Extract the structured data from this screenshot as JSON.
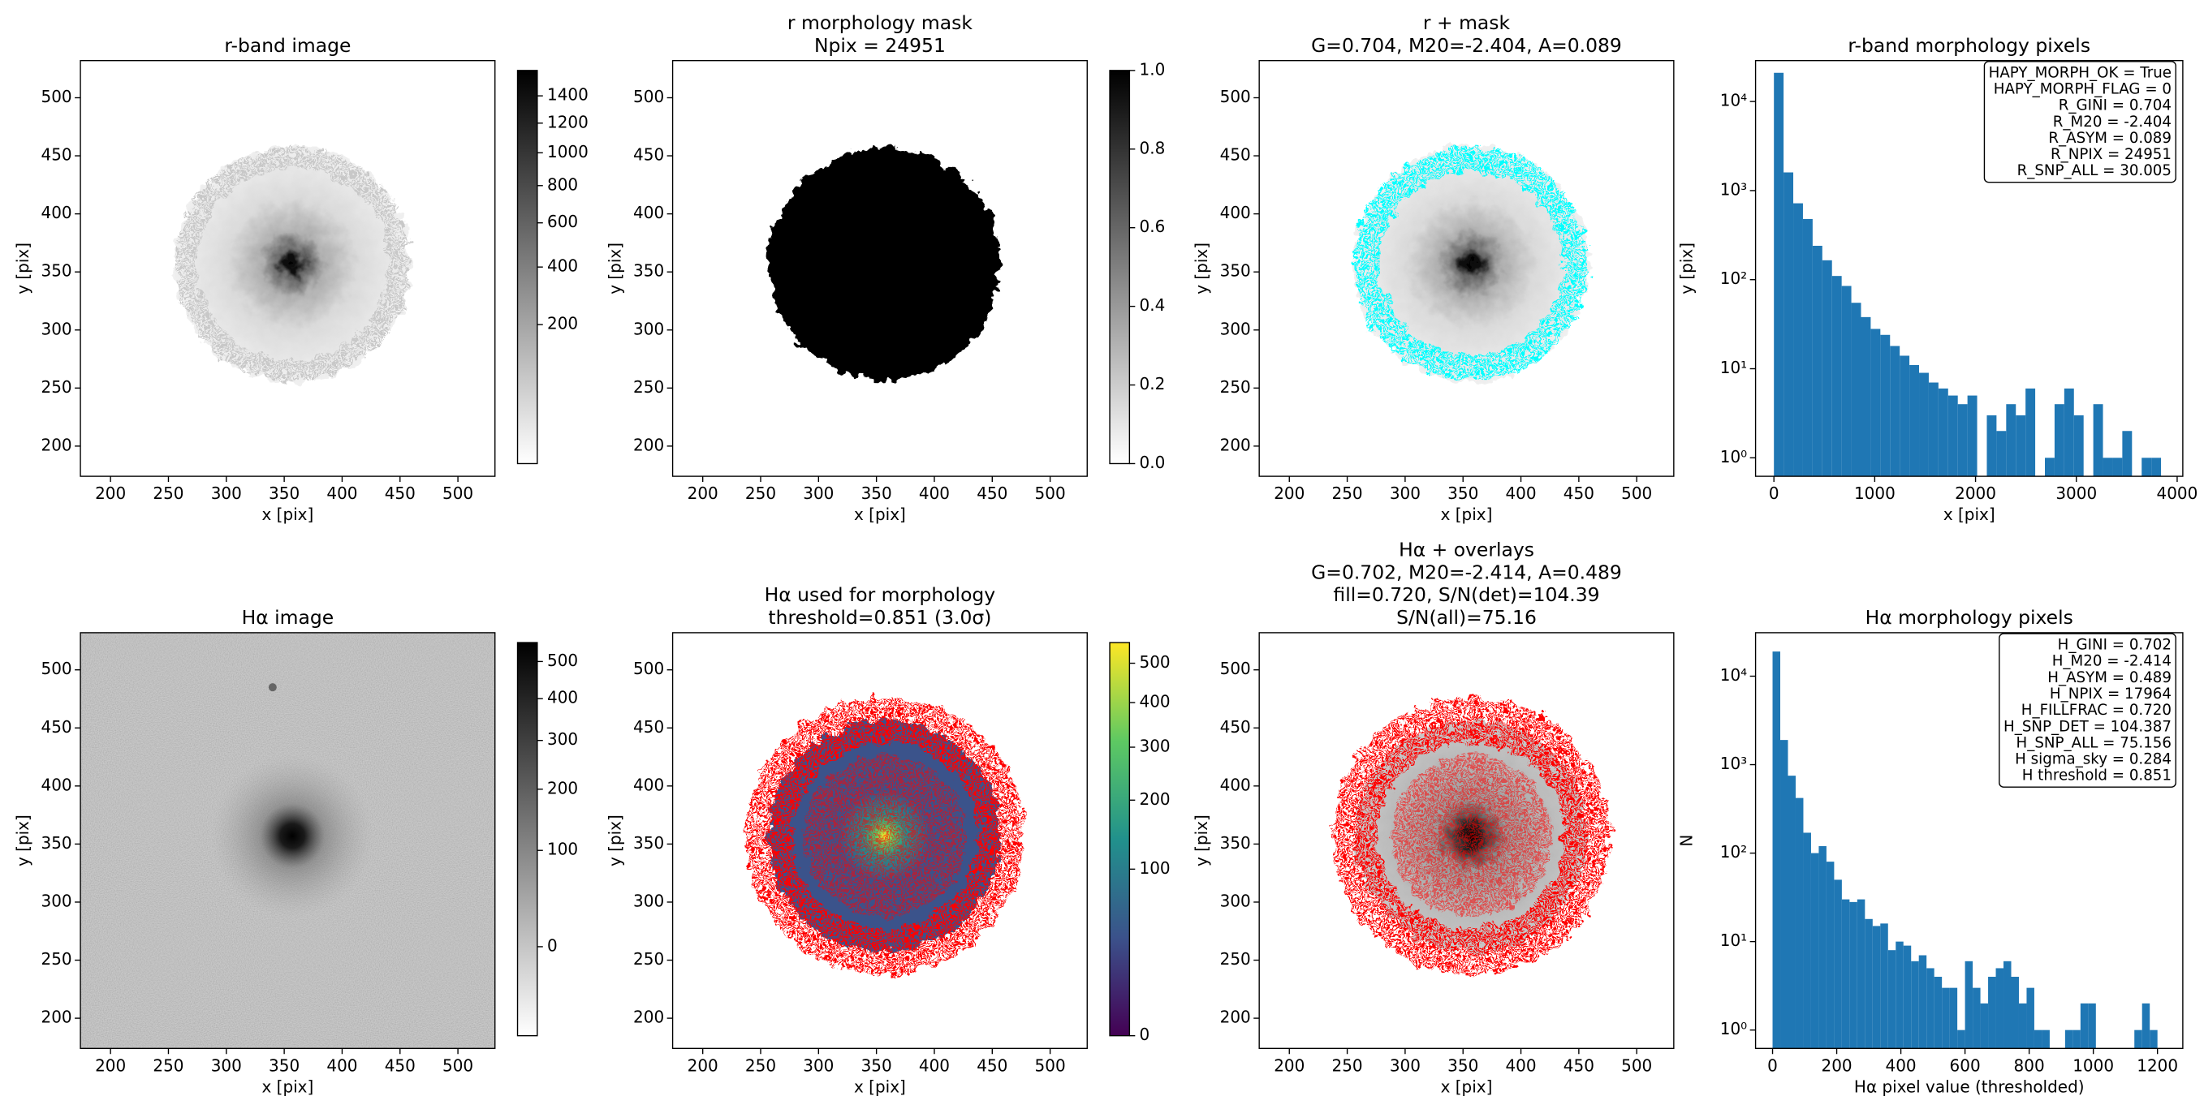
{
  "chart_data": [
    {
      "type": "image",
      "title": [
        "r-band image"
      ],
      "xlabel": "x [pix]",
      "ylabel": "y [pix]",
      "xlim": [
        174,
        532
      ],
      "ylim": [
        174,
        532
      ],
      "xticks": [
        200,
        250,
        300,
        350,
        400,
        450,
        500
      ],
      "yticks": [
        200,
        250,
        300,
        350,
        400,
        450,
        500
      ],
      "cmap": "gray_r",
      "colorbar": {
        "lim": [
          0,
          1600
        ],
        "scale": "sqrt",
        "ticks": [
          200,
          400,
          600,
          800,
          1000,
          1200,
          1400
        ]
      }
    },
    {
      "type": "image",
      "title": [
        "r morphology mask",
        "Npix = 24951"
      ],
      "xlabel": "x [pix]",
      "ylabel": "y [pix]",
      "xlim": [
        174,
        532
      ],
      "ylim": [
        174,
        532
      ],
      "xticks": [
        200,
        250,
        300,
        350,
        400,
        450,
        500
      ],
      "yticks": [
        200,
        250,
        300,
        350,
        400,
        450,
        500
      ],
      "cmap": "gray_r",
      "colorbar": {
        "lim": [
          0,
          1
        ],
        "scale": "linear",
        "ticks": [
          {
            "value": 0,
            "label": "0.0"
          },
          0.2,
          0.4,
          0.6,
          0.8,
          {
            "value": 1,
            "label": "1.0"
          }
        ]
      }
    },
    {
      "type": "image",
      "title": [
        "r + mask",
        "G=0.704, M20=-2.404, A=0.089"
      ],
      "xlabel": "x [pix]",
      "ylabel": "y [pix]",
      "xlim": [
        174,
        532
      ],
      "ylim": [
        174,
        532
      ],
      "xticks": [
        200,
        250,
        300,
        350,
        400,
        450,
        500
      ],
      "yticks": [
        200,
        250,
        300,
        350,
        400,
        450,
        500
      ],
      "cmap": "gray_r",
      "overlay_colors": [
        "#00ffff"
      ]
    },
    {
      "type": "histogram",
      "title": [
        "r-band morphology pixels"
      ],
      "xlabel": "x [pix]",
      "ylabel": "y [pix]",
      "color": "#1f77b4",
      "log_y": true,
      "bins": [
        0,
        96,
        192,
        288,
        384,
        480,
        576,
        672,
        768,
        864,
        960,
        1056,
        1152,
        1248,
        1344,
        1440,
        1536,
        1632,
        1728,
        1824,
        1920,
        2016,
        2112,
        2208,
        2304,
        2400,
        2496,
        2592,
        2688,
        2784,
        2880,
        2976,
        3072,
        3168,
        3264,
        3360,
        3456,
        3552,
        3648,
        3744,
        3840
      ],
      "counts": [
        21000,
        1600,
        720,
        480,
        240,
        165,
        110,
        85,
        55,
        38,
        28,
        24,
        18,
        14,
        11,
        9,
        7,
        6,
        5,
        4,
        5,
        0,
        3,
        2,
        4,
        3,
        6,
        0,
        1,
        4,
        6,
        3,
        0,
        4,
        1,
        1,
        2,
        0,
        1,
        1
      ],
      "xlim": [
        -182,
        4056
      ],
      "ylim": [
        0.62,
        28800
      ],
      "xticks": [
        0,
        1000,
        2000,
        3000,
        4000
      ],
      "yticks": [
        {
          "value": 1,
          "label": "10⁰"
        },
        {
          "value": 10,
          "label": "10¹"
        },
        {
          "value": 100,
          "label": "10²"
        },
        {
          "value": 1000,
          "label": "10³"
        },
        {
          "value": 10000,
          "label": "10⁴"
        }
      ],
      "stats": [
        "HAPY_MORPH_OK = True",
        "HAPY_MORPH_FLAG = 0",
        "R_GINI = 0.704",
        "R_M20 = -2.404",
        "R_ASYM = 0.089",
        "R_NPIX = 24951",
        "R_SNP_ALL = 30.005"
      ]
    },
    {
      "type": "image",
      "title": [
        "Hα image"
      ],
      "xlabel": "x [pix]",
      "ylabel": "y [pix]",
      "xlim": [
        174,
        532
      ],
      "ylim": [
        174,
        532
      ],
      "xticks": [
        200,
        250,
        300,
        350,
        400,
        450,
        500
      ],
      "yticks": [
        200,
        250,
        300,
        350,
        400,
        450,
        500
      ],
      "cmap": "gray_r",
      "colorbar": {
        "lim": [
          -30,
          555
        ],
        "scale": "sqrt",
        "ticks": [
          0,
          100,
          200,
          300,
          400,
          500
        ]
      }
    },
    {
      "type": "image",
      "title": [
        "Hα used for morphology",
        "threshold=0.851 (3.0σ)"
      ],
      "xlabel": "x [pix]",
      "ylabel": "y [pix]",
      "xlim": [
        174,
        532
      ],
      "ylim": [
        174,
        532
      ],
      "xticks": [
        200,
        250,
        300,
        350,
        400,
        450,
        500
      ],
      "yticks": [
        200,
        250,
        300,
        350,
        400,
        450,
        500
      ],
      "cmap": "viridis",
      "overlay_colors": [
        "#ff0000"
      ],
      "colorbar": {
        "lim": [
          0,
          557
        ],
        "scale": "sqrt",
        "ticks": [
          0,
          100,
          200,
          300,
          400,
          500
        ]
      }
    },
    {
      "type": "image",
      "title": [
        "Hα + overlays",
        "G=0.702, M20=-2.414, A=0.489",
        "fill=0.720, S/N(det)=104.39",
        "S/N(all)=75.16"
      ],
      "xlabel": "x [pix]",
      "ylabel": "y [pix]",
      "xlim": [
        174,
        532
      ],
      "ylim": [
        174,
        532
      ],
      "xticks": [
        200,
        250,
        300,
        350,
        400,
        450,
        500
      ],
      "yticks": [
        200,
        250,
        300,
        350,
        400,
        450,
        500
      ],
      "cmap": "gray_r",
      "overlay_colors": [
        "#00ffff",
        "#ff0000"
      ]
    },
    {
      "type": "histogram",
      "title": [
        "Hα morphology pixels"
      ],
      "xlabel": "Hα pixel value (thresholded)",
      "ylabel": "N",
      "color": "#1f77b4",
      "log_y": true,
      "bins": [
        0,
        24,
        48,
        72,
        96,
        120,
        144,
        168,
        192,
        216,
        240,
        264,
        288,
        312,
        336,
        360,
        384,
        408,
        432,
        456,
        480,
        504,
        528,
        552,
        576,
        600,
        624,
        648,
        672,
        696,
        720,
        744,
        768,
        792,
        816,
        840,
        864,
        888,
        912,
        936,
        960,
        984,
        1008,
        1032,
        1056,
        1080,
        1104,
        1128,
        1152,
        1176,
        1200
      ],
      "counts": [
        19000,
        1900,
        750,
        420,
        170,
        100,
        120,
        80,
        50,
        30,
        28,
        30,
        18,
        15,
        16,
        8,
        10,
        9,
        6,
        7,
        5,
        4,
        3,
        3,
        1,
        6,
        3,
        2,
        4,
        5,
        6,
        4,
        2,
        3,
        1,
        1,
        0,
        0,
        1,
        1,
        2,
        2,
        0,
        0,
        0,
        0,
        0,
        1,
        2,
        1
      ],
      "xlim": [
        -53,
        1279
      ],
      "ylim": [
        0.62,
        31000
      ],
      "xticks": [
        0,
        200,
        400,
        600,
        800,
        1000,
        1200
      ],
      "yticks": [
        {
          "value": 1,
          "label": "10⁰"
        },
        {
          "value": 10,
          "label": "10¹"
        },
        {
          "value": 100,
          "label": "10²"
        },
        {
          "value": 1000,
          "label": "10³"
        },
        {
          "value": 10000,
          "label": "10⁴"
        }
      ],
      "stats": [
        "H_GINI = 0.702",
        "H_M20 = -2.414",
        "H_ASYM = 0.489",
        "H_NPIX = 17964",
        "H_FILLFRAC = 0.720",
        "H_SNP_DET = 104.387",
        "H_SNP_ALL = 75.156",
        "H sigma_sky = 0.284",
        "H threshold = 0.851"
      ]
    }
  ]
}
